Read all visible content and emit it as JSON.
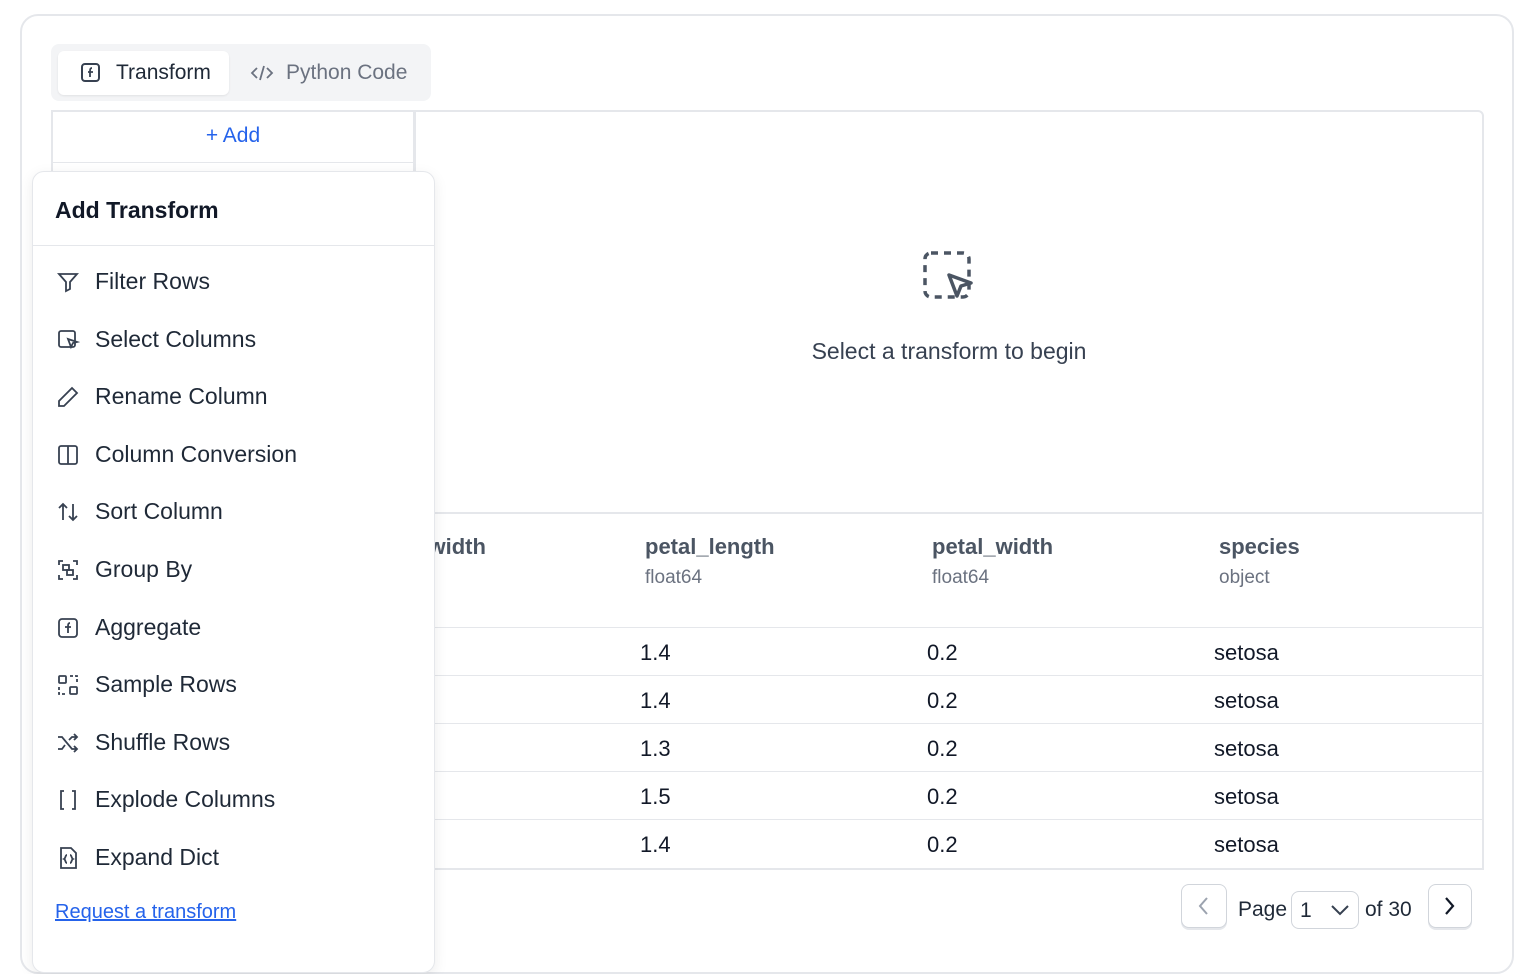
{
  "tabs": [
    "Transform",
    "Python Code"
  ],
  "add_button": "+ Add",
  "empty_state": "Select a transform to begin",
  "table": {
    "clipped_header": "sepal_width",
    "columns": [
      {
        "name": "petal_length",
        "dtype": "float64"
      },
      {
        "name": "petal_width",
        "dtype": "float64"
      },
      {
        "name": "species",
        "dtype": "object"
      }
    ],
    "rows": [
      [
        "1.4",
        "0.2",
        "setosa"
      ],
      [
        "1.4",
        "0.2",
        "setosa"
      ],
      [
        "1.3",
        "0.2",
        "setosa"
      ],
      [
        "1.5",
        "0.2",
        "setosa"
      ],
      [
        "1.4",
        "0.2",
        "setosa"
      ]
    ]
  },
  "pagination": {
    "page_label": "Page",
    "current": "1",
    "total": "of 30"
  },
  "menu": {
    "title": "Add Transform",
    "items": [
      "Filter Rows",
      "Select Columns",
      "Rename Column",
      "Column Conversion",
      "Sort Column",
      "Group By",
      "Aggregate",
      "Sample Rows",
      "Shuffle Rows",
      "Explode Columns",
      "Expand Dict"
    ],
    "link": "Request a transform"
  }
}
